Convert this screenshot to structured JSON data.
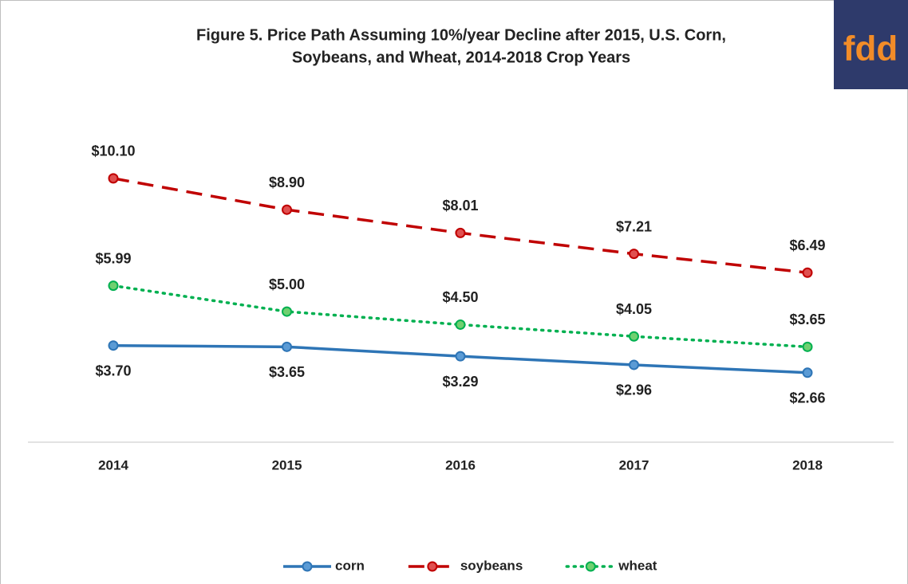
{
  "chart_data": {
    "type": "line",
    "title": [
      "Figure 5. Price Path Assuming  10%/year  Decline after 2015, U.S. Corn,",
      "Soybeans, and Wheat, 2014-2018 Crop Years"
    ],
    "logo": "fdd",
    "categories": [
      "2014",
      "2015",
      "2016",
      "2017",
      "2018"
    ],
    "ylim": [
      0,
      14
    ],
    "legend": "bottom",
    "series": [
      {
        "name": "corn",
        "color": "#2e75b6",
        "marker_fill": "#5b9bd5",
        "dash": "solid",
        "label_position": "below",
        "values": [
          3.7,
          3.65,
          3.29,
          2.96,
          2.66
        ],
        "value_labels": [
          "$3.70",
          "$3.65",
          "$3.29",
          "$2.96",
          "$2.66"
        ]
      },
      {
        "name": "soybeans",
        "color": "#c00000",
        "marker_fill": "#e05050",
        "dash": "dashed",
        "label_position": "above",
        "values": [
          10.1,
          8.9,
          8.01,
          7.21,
          6.49
        ],
        "value_labels": [
          "$10.10",
          "$8.90",
          "$8.01",
          "$7.21",
          "$6.49"
        ]
      },
      {
        "name": "wheat",
        "color": "#00b050",
        "marker_fill": "#70d070",
        "dash": "dotted",
        "label_position": "above",
        "values": [
          5.99,
          5.0,
          4.5,
          4.05,
          3.65
        ],
        "value_labels": [
          "$5.99",
          "$5.00",
          "$4.50",
          "$4.05",
          "$3.65"
        ]
      }
    ]
  }
}
